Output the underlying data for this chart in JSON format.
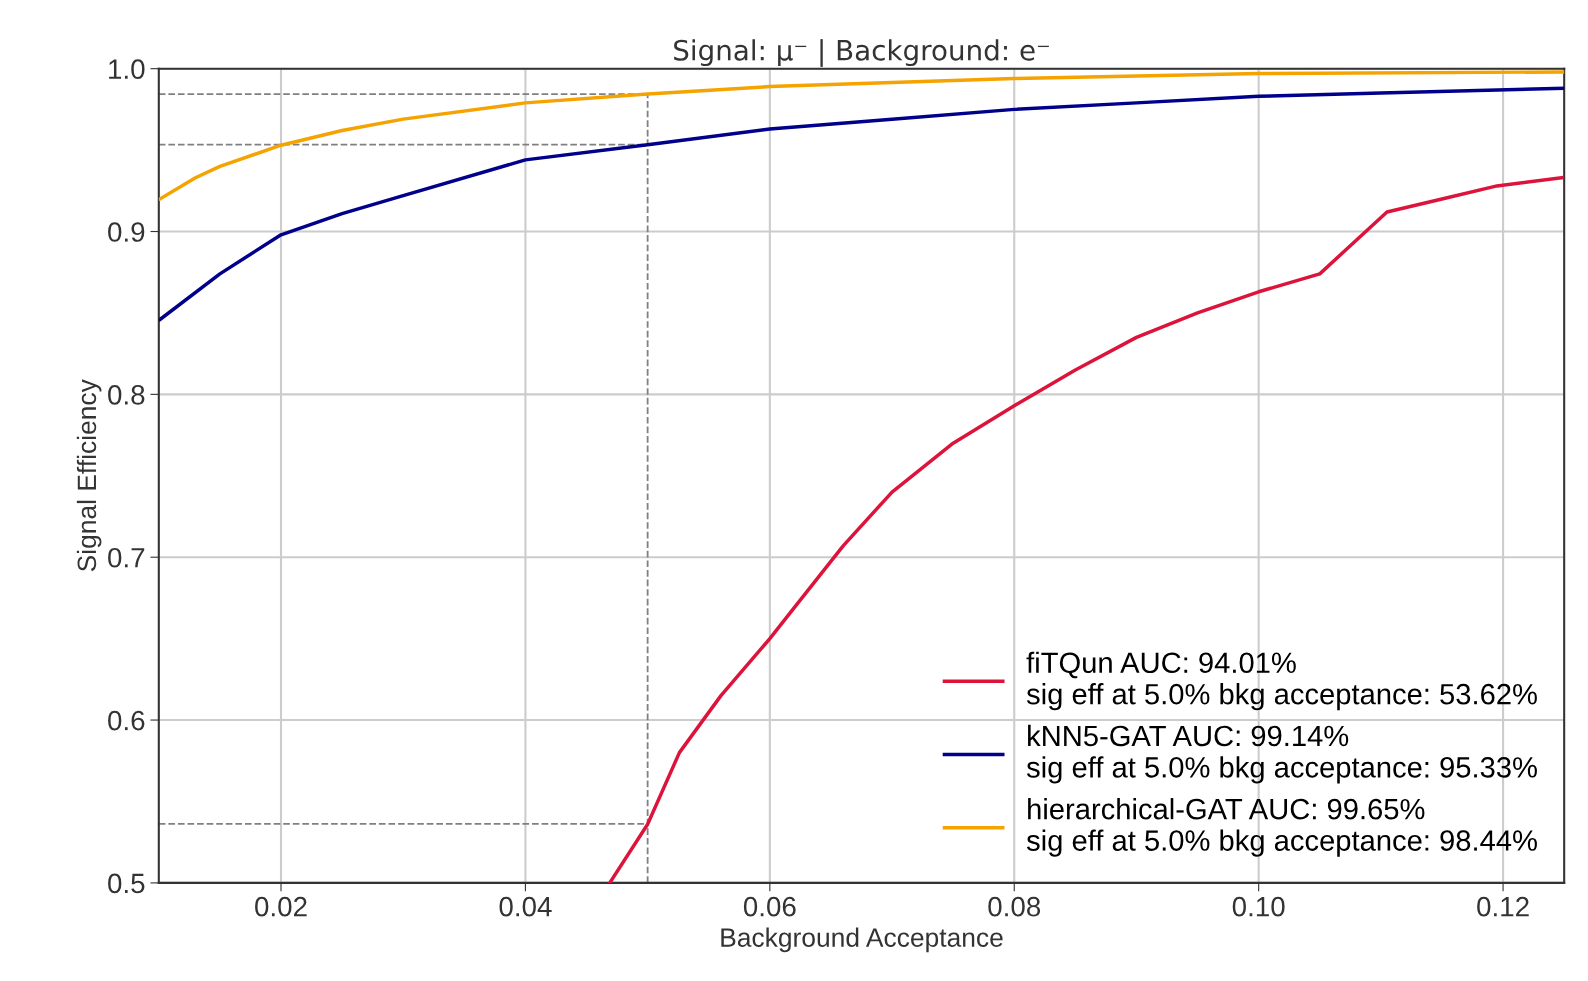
{
  "chart_data": {
    "type": "line",
    "title": "Signal: μ⁻ | Background: e⁻",
    "xlabel": "Background Acceptance",
    "ylabel": "Signal Efficiency",
    "xlim": [
      0.01,
      0.125
    ],
    "ylim": [
      0.5,
      1.0
    ],
    "xticks": [
      0.02,
      0.04,
      0.06,
      0.08,
      {
        "value": 0.1,
        "label": "0.10"
      },
      0.12
    ],
    "yticks": [
      0.5,
      0.6,
      0.7,
      0.8,
      0.9,
      {
        "value": 1.0,
        "label": "1.0"
      }
    ],
    "grid": true,
    "legend": "bottom right",
    "line_style": "solid",
    "marker": "none",
    "series": [
      {
        "name": "fiTQun AUC: 94.01%\nsig eff at 5.0% bkg acceptance: 53.62%",
        "color": "#dc143c",
        "x": [
          0.0469,
          0.05,
          0.0526,
          0.056,
          0.06,
          0.062,
          0.066,
          0.07,
          0.075,
          0.08,
          0.085,
          0.09,
          0.095,
          0.1,
          0.105,
          0.1105,
          0.115,
          0.1195,
          0.1248
        ],
        "values": [
          0.5,
          0.536,
          0.58,
          0.615,
          0.65,
          0.669,
          0.707,
          0.74,
          0.77,
          0.793,
          0.815,
          0.835,
          0.85,
          0.863,
          0.874,
          0.912,
          0.92,
          0.928,
          0.933
        ]
      },
      {
        "name": "kNN5-GAT AUC: 99.14%\nsig eff at 5.0% bkg acceptance: 95.33%",
        "color": "#00008b",
        "x": [
          0.0101,
          0.015,
          0.02,
          0.025,
          0.03,
          0.04,
          0.05,
          0.06,
          0.07,
          0.08,
          0.09,
          0.1,
          0.11,
          0.125
        ],
        "values": [
          0.846,
          0.874,
          0.898,
          0.911,
          0.922,
          0.944,
          0.9533,
          0.963,
          0.969,
          0.975,
          0.979,
          0.983,
          0.985,
          0.988
        ]
      },
      {
        "name": "hierarchical-GAT AUC: 99.65%\nsig eff at 5.0% bkg acceptance: 98.44%",
        "color": "#f5a300",
        "x": [
          0.0101,
          0.013,
          0.015,
          0.02,
          0.025,
          0.03,
          0.04,
          0.05,
          0.06,
          0.08,
          0.1,
          0.125
        ],
        "values": [
          0.92,
          0.933,
          0.94,
          0.953,
          0.962,
          0.969,
          0.979,
          0.9844,
          0.989,
          0.994,
          0.997,
          0.998
        ]
      }
    ],
    "ref_lines": [
      {
        "axis": "x",
        "value": 0.05,
        "color": "#808080",
        "line_style": "dashed"
      },
      {
        "axis": "y",
        "value": 0.9844,
        "color": "#808080",
        "line_style": "dashed"
      },
      {
        "axis": "y",
        "value": 0.9533,
        "color": "#808080",
        "line_style": "dashed"
      },
      {
        "axis": "y",
        "value": 0.5362,
        "color": "#808080",
        "line_style": "dashed"
      }
    ]
  }
}
